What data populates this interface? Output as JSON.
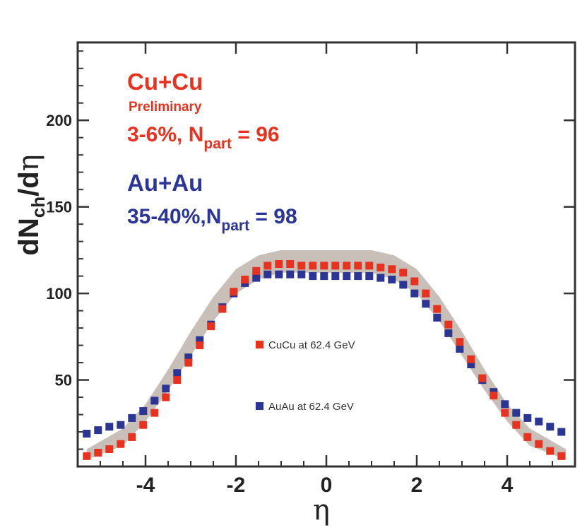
{
  "chart_data": {
    "type": "scatter",
    "title": "",
    "xlabel": "η",
    "ylabel": {
      "main": "dN",
      "sub1": "ch",
      "mid": "/d",
      "end": "η"
    },
    "xlim": [
      -5.5,
      5.5
    ],
    "ylim": [
      0,
      245
    ],
    "xticks": [
      -4,
      -2,
      0,
      2,
      4
    ],
    "xtick_labels": [
      "-4",
      "-2",
      "0",
      "2",
      "4"
    ],
    "yticks": [
      50,
      100,
      150,
      200
    ],
    "ytick_labels": [
      "50",
      "100",
      "150",
      "200"
    ],
    "grid": false,
    "legend_position": "center",
    "annotations": {
      "cucu": {
        "line1": "Cu+Cu",
        "line2": "Preliminary",
        "line3_main": "3-6%, N",
        "line3_sub": "part",
        "line3_tail": " = 96",
        "color": "#e8321e"
      },
      "auau": {
        "line1": "Au+Au",
        "line2_main": "35-40%,N",
        "line2_sub": "part",
        "line2_tail": " = 98",
        "color": "#2b3595"
      }
    },
    "band": {
      "name": "systematic uncertainty",
      "color": "#c8c0b8",
      "x": [
        -5.3,
        -4.5,
        -4.0,
        -3.5,
        -3.0,
        -2.5,
        -2.0,
        -1.5,
        -1.0,
        -0.5,
        0,
        0.5,
        1.0,
        1.5,
        2.0,
        2.5,
        3.0,
        3.5,
        4.0,
        4.5,
        5.3
      ],
      "upper": [
        10,
        22,
        36,
        56,
        78,
        98,
        114,
        122,
        125,
        125,
        125,
        125,
        125,
        122,
        114,
        98,
        78,
        56,
        36,
        22,
        10
      ],
      "lower": [
        4,
        12,
        26,
        44,
        64,
        84,
        100,
        108,
        112,
        112,
        112,
        112,
        112,
        108,
        100,
        84,
        64,
        44,
        26,
        12,
        4
      ]
    },
    "series": [
      {
        "name": "CuCu at 62.4 GeV",
        "color": "#e8321e",
        "x": [
          -5.3,
          -5.05,
          -4.8,
          -4.55,
          -4.3,
          -4.05,
          -3.8,
          -3.55,
          -3.3,
          -3.05,
          -2.8,
          -2.55,
          -2.3,
          -2.05,
          -1.8,
          -1.55,
          -1.3,
          -1.05,
          -0.8,
          -0.55,
          -0.3,
          -0.05,
          0.2,
          0.45,
          0.7,
          0.95,
          1.2,
          1.45,
          1.7,
          1.95,
          2.2,
          2.45,
          2.7,
          2.95,
          3.2,
          3.45,
          3.7,
          3.95,
          4.2,
          4.45,
          4.7,
          4.95,
          5.2
        ],
        "values": [
          6,
          8,
          10,
          13,
          17,
          24,
          31,
          40,
          50,
          60,
          70,
          81,
          91,
          101,
          108,
          113,
          116,
          117,
          117,
          116,
          116,
          116,
          116,
          116,
          116,
          116,
          115,
          114,
          112,
          107,
          100,
          91,
          82,
          72,
          62,
          51,
          41,
          31,
          24,
          17,
          13,
          9,
          6
        ]
      },
      {
        "name": "AuAu at 62.4 GeV",
        "color": "#2b3595",
        "x": [
          -5.3,
          -5.05,
          -4.8,
          -4.55,
          -4.3,
          -4.05,
          -3.8,
          -3.55,
          -3.3,
          -3.05,
          -2.8,
          -2.55,
          -2.3,
          -2.05,
          -1.8,
          -1.55,
          -1.3,
          -1.05,
          -0.8,
          -0.55,
          -0.3,
          -0.05,
          0.2,
          0.45,
          0.7,
          0.95,
          1.2,
          1.45,
          1.7,
          1.95,
          2.2,
          2.45,
          2.7,
          2.95,
          3.2,
          3.45,
          3.7,
          3.95,
          4.2,
          4.45,
          4.7,
          4.95,
          5.2
        ],
        "values": [
          19,
          21,
          23,
          24,
          28,
          32,
          38,
          45,
          54,
          63,
          73,
          82,
          92,
          100,
          106,
          109,
          111,
          111,
          111,
          111,
          110,
          110,
          110,
          110,
          110,
          110,
          109,
          108,
          105,
          100,
          94,
          86,
          77,
          68,
          59,
          50,
          43,
          36,
          31,
          28,
          26,
          23,
          20
        ]
      }
    ]
  }
}
